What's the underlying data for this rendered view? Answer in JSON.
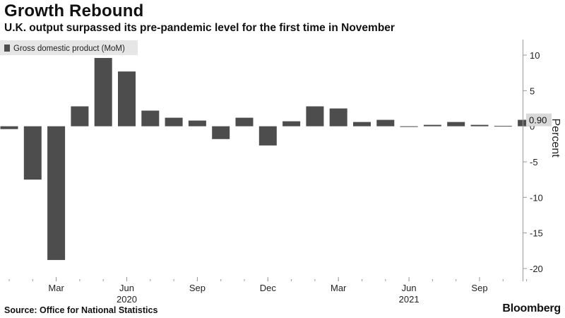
{
  "header": {
    "title": "Growth Rebound",
    "subtitle": "U.K. output surpassed its pre-pandemic level for the first time in November"
  },
  "footer": {
    "source": "Source: Office for National Statistics",
    "brand": "Bloomberg"
  },
  "colors": {
    "bar": "#4d4d4d",
    "legend_bg": "#e6e6e6",
    "axis": "#999999",
    "last_label_bg": "#d9d9d9"
  },
  "chart_data": {
    "type": "bar",
    "title": "Growth Rebound",
    "subtitle": "U.K. output surpassed its pre-pandemic level for the first time in November",
    "legend": [
      "Gross domestic product (MoM)"
    ],
    "legend_position": "top-left",
    "ylabel": "Percent",
    "xlabel": "",
    "ylim": [
      -20,
      12
    ],
    "y_ticks": [
      10,
      5,
      0,
      -5,
      -10,
      -15,
      -20
    ],
    "y_tick_labels": [
      "10",
      "5",
      "0",
      "-5",
      "-10",
      "-15",
      "-20"
    ],
    "y_axis_side": "right",
    "grid": false,
    "categories": [
      "Jan 2020",
      "Feb 2020",
      "Mar 2020",
      "Apr 2020",
      "May 2020",
      "Jun 2020",
      "Jul 2020",
      "Aug 2020",
      "Sep 2020",
      "Oct 2020",
      "Nov 2020",
      "Dec 2020",
      "Jan 2021",
      "Feb 2021",
      "Mar 2021",
      "Apr 2021",
      "May 2021",
      "Jun 2021",
      "Jul 2021",
      "Aug 2021",
      "Sep 2021",
      "Oct 2021",
      "Nov 2021"
    ],
    "values": [
      -0.4,
      -7.5,
      -18.8,
      2.8,
      9.6,
      7.7,
      2.2,
      1.2,
      0.8,
      -1.8,
      1.2,
      -2.7,
      0.7,
      2.8,
      2.5,
      0.6,
      0.9,
      -0.1,
      0.2,
      0.6,
      0.2,
      0,
      0.9
    ],
    "x_tick_labels": [
      {
        "label": "Mar",
        "category": "Mar 2020"
      },
      {
        "label": "Jun",
        "category": "Jun 2020"
      },
      {
        "label": "Sep",
        "category": "Sep 2020"
      },
      {
        "label": "Dec",
        "category": "Dec 2020"
      },
      {
        "label": "Mar",
        "category": "Mar 2021"
      },
      {
        "label": "Jun",
        "category": "Jun 2021"
      },
      {
        "label": "Sep",
        "category": "Sep 2021"
      }
    ],
    "year_labels": [
      {
        "label": "2020",
        "category": "Jun 2020"
      },
      {
        "label": "2021",
        "category": "Jun 2021"
      }
    ],
    "last_value_label": "0.90"
  }
}
